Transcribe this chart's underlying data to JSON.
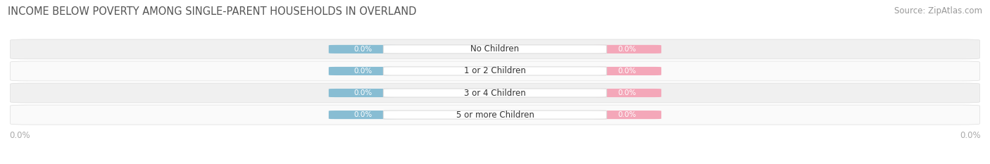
{
  "title": "INCOME BELOW POVERTY AMONG SINGLE-PARENT HOUSEHOLDS IN OVERLAND",
  "source": "Source: ZipAtlas.com",
  "categories": [
    "No Children",
    "1 or 2 Children",
    "3 or 4 Children",
    "5 or more Children"
  ],
  "father_values": [
    0.0,
    0.0,
    0.0,
    0.0
  ],
  "mother_values": [
    0.0,
    0.0,
    0.0,
    0.0
  ],
  "father_color": "#88BDD3",
  "mother_color": "#F4A7B9",
  "label_color_father": "#FFFFFF",
  "label_color_mother": "#FFFFFF",
  "category_text_color": "#333333",
  "title_color": "#555555",
  "source_color": "#999999",
  "axis_label_color": "#aaaaaa",
  "background_color": "#FFFFFF",
  "row_bg_even": "#F0F0F0",
  "row_bg_odd": "#FAFAFA",
  "row_border_color": "#DDDDDD",
  "center_box_color": "#FFFFFF",
  "center_box_border": "#DDDDDD",
  "title_fontsize": 10.5,
  "source_fontsize": 8.5,
  "legend_fontsize": 9,
  "category_fontsize": 8.5,
  "value_fontsize": 7.5,
  "axis_tick_fontsize": 8.5
}
